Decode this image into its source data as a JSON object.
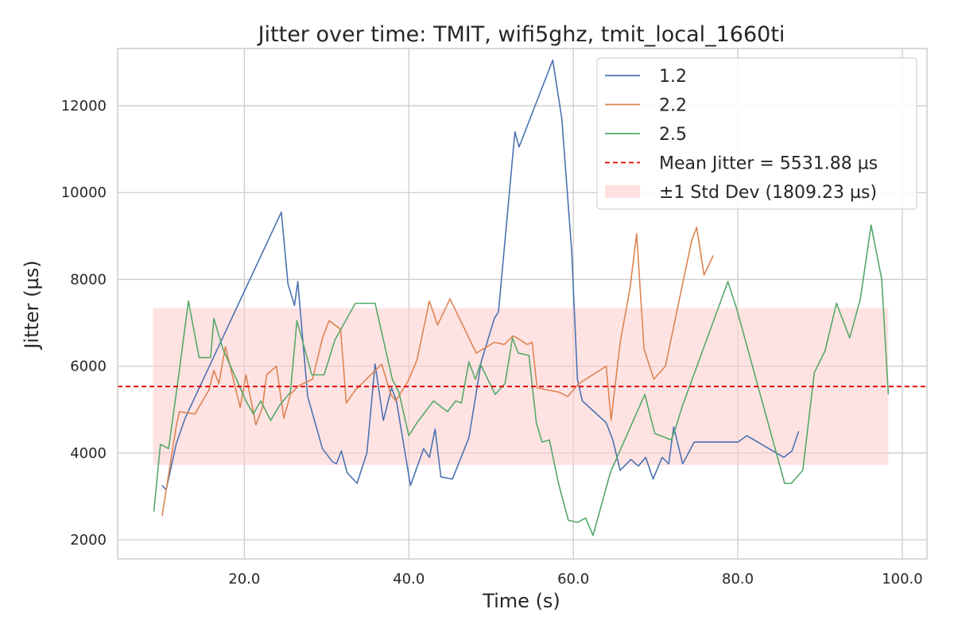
{
  "chart_data": {
    "type": "line",
    "title": "Jitter over time: TMIT, wifi5ghz, tmit_local_1660ti",
    "xlabel": "Time (s)",
    "ylabel": "Jitter (µs)",
    "xlim": [
      4.6,
      103
    ],
    "ylim": [
      1560,
      13320
    ],
    "x_ticks": [
      20,
      40,
      60,
      80,
      100
    ],
    "x_tick_labels": [
      "20.0",
      "40.0",
      "60.0",
      "80.0",
      "100.0"
    ],
    "y_ticks": [
      2000,
      4000,
      6000,
      8000,
      10000,
      12000
    ],
    "y_tick_labels": [
      "2000",
      "4000",
      "6000",
      "8000",
      "10000",
      "12000"
    ],
    "grid": true,
    "legend_position": "top-right",
    "mean": {
      "label": "Mean Jitter = 5531.88 µs",
      "value": 5531.88,
      "color": "#e00000"
    },
    "std_band": {
      "label": "±1 Std Dev (1809.23 µs)",
      "low": 3722.65,
      "high": 7341.11,
      "x_range": [
        8.9,
        98.3
      ],
      "color": "#ffcccc"
    },
    "series": [
      {
        "name": "1.2",
        "color": "#4c72b0",
        "x": [
          10.0,
          10.5,
          11.7,
          12.8,
          24.5,
          25.3,
          26.1,
          26.5,
          27.7,
          29.5,
          30.7,
          31.2,
          31.8,
          32.5,
          33.7,
          34.9,
          35.9,
          36.9,
          37.9,
          38.5,
          40.2,
          41.8,
          42.5,
          43.2,
          43.9,
          45.3,
          47.3,
          48.8,
          50.4,
          50.9,
          52.9,
          53.4,
          57.5,
          58.6,
          59.8,
          60.5,
          61.1,
          64.0,
          64.8,
          65.7,
          67.0,
          67.9,
          68.8,
          69.7,
          70.8,
          71.6,
          72.2,
          73.3,
          74.7,
          80.0,
          81.1,
          85.6,
          86.6,
          87.4
        ],
        "values": [
          3250,
          3150,
          4200,
          4800,
          9550,
          7900,
          7400,
          7950,
          5300,
          4100,
          3800,
          3750,
          4050,
          3550,
          3300,
          4000,
          6050,
          4750,
          5500,
          5200,
          3250,
          4100,
          3900,
          4550,
          3450,
          3400,
          4350,
          6100,
          7100,
          7250,
          11400,
          11050,
          13050,
          11700,
          8650,
          5700,
          5200,
          4700,
          4300,
          3600,
          3850,
          3700,
          3900,
          3400,
          3900,
          3750,
          4600,
          3750,
          4250,
          4250,
          4400,
          3900,
          4050,
          4500
        ]
      },
      {
        "name": "2.2",
        "color": "#dd8452",
        "x": [
          10.0,
          11.7,
          12.1,
          14.0,
          15.7,
          16.3,
          16.9,
          17.7,
          19.5,
          20.2,
          21.4,
          22.2,
          22.7,
          23.9,
          24.8,
          25.6,
          26.6,
          28.3,
          29.5,
          30.3,
          31.7,
          32.4,
          33.5,
          36.7,
          37.8,
          38.4,
          39.9,
          41.0,
          42.5,
          43.5,
          45.0,
          48.2,
          50.4,
          51.6,
          52.7,
          53.6,
          54.4,
          55.0,
          55.6,
          58.3,
          59.3,
          60.7,
          64.0,
          64.6,
          65.7,
          66.9,
          67.7,
          68.6,
          69.8,
          71.2,
          74.4,
          75.0,
          75.9,
          77.0
        ],
        "values": [
          2550,
          4600,
          4950,
          4900,
          5450,
          5900,
          5600,
          6450,
          5050,
          5800,
          4650,
          5050,
          5800,
          6000,
          4800,
          5350,
          5550,
          5700,
          6650,
          7050,
          6850,
          5150,
          5450,
          6050,
          5350,
          5200,
          5650,
          6150,
          7500,
          6950,
          7550,
          6300,
          6550,
          6500,
          6700,
          6600,
          6500,
          6550,
          5500,
          5400,
          5300,
          5600,
          6000,
          4750,
          6550,
          7800,
          9050,
          6400,
          5700,
          6000,
          8900,
          9200,
          8100,
          8550
        ]
      },
      {
        "name": "2.5",
        "color": "#55a868",
        "x": [
          9.0,
          9.8,
          10.3,
          10.8,
          12.1,
          13.2,
          14.5,
          15.9,
          16.3,
          17.4,
          20.2,
          21.1,
          22.0,
          23.2,
          24.3,
          25.6,
          26.4,
          28.2,
          29.7,
          31.0,
          33.5,
          34.7,
          35.9,
          38.0,
          38.8,
          40.0,
          41.0,
          43.0,
          44.7,
          45.7,
          46.4,
          47.3,
          48.1,
          48.7,
          50.5,
          51.7,
          52.6,
          53.3,
          54.6,
          55.5,
          56.2,
          57.1,
          58.2,
          59.4,
          60.5,
          61.5,
          62.4,
          64.5,
          68.7,
          69.9,
          71.9,
          72.4,
          73.3,
          78.8,
          79.9,
          85.7,
          86.5,
          87.9,
          89.3,
          90.6,
          92.0,
          93.6,
          94.9,
          96.2,
          97.5,
          98.3
        ],
        "values": [
          2650,
          4200,
          4150,
          4100,
          5900,
          7500,
          6200,
          6200,
          7100,
          6400,
          5200,
          4900,
          5200,
          4750,
          5100,
          5400,
          7050,
          5800,
          5800,
          6600,
          7450,
          7450,
          7450,
          5700,
          5400,
          4400,
          4700,
          5200,
          4950,
          5200,
          5150,
          6100,
          5700,
          6050,
          5350,
          5600,
          6650,
          6300,
          6250,
          4700,
          4250,
          4300,
          3300,
          2450,
          2400,
          2500,
          2100,
          3550,
          5350,
          4450,
          4300,
          4550,
          5100,
          7950,
          7300,
          3300,
          3300,
          3600,
          5850,
          6350,
          7450,
          6650,
          7550,
          9250,
          8000,
          5350
        ]
      }
    ]
  }
}
